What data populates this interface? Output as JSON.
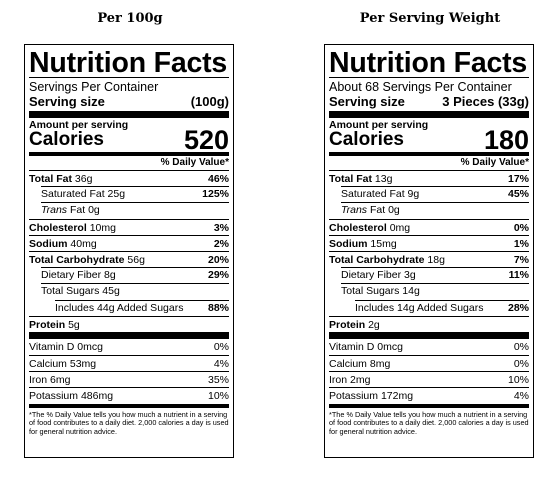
{
  "columns": [
    {
      "heading": "Per 100g",
      "title": "Nutrition Facts",
      "servings_per_container": "Servings Per Container",
      "serving_size_label": "Serving size",
      "serving_size_value": "(100g)",
      "amount_per_serving": "Amount per serving",
      "calories_label": "Calories",
      "calories_value": "520",
      "dv_header": "% Daily Value*",
      "total_fat": {
        "label": "Total Fat",
        "amount": "36g",
        "dv": "46%"
      },
      "saturated_fat": {
        "label": "Saturated Fat",
        "amount": "25g",
        "dv": "125%"
      },
      "trans_fat": {
        "label_italic": "Trans",
        "label": "Fat",
        "amount": "0g"
      },
      "cholesterol": {
        "label": "Cholesterol",
        "amount": "10mg",
        "dv": "3%"
      },
      "sodium": {
        "label": "Sodium",
        "amount": "40mg",
        "dv": "2%"
      },
      "total_carb": {
        "label": "Total Carbohydrate",
        "amount": "56g",
        "dv": "20%"
      },
      "dietary_fiber": {
        "label": "Dietary Fiber",
        "amount": "8g",
        "dv": "29%"
      },
      "total_sugars": {
        "label": "Total Sugars",
        "amount": "45g"
      },
      "added_sugars": {
        "prefix": "Includes",
        "amount": "44g",
        "label": "Added Sugars",
        "dv": "88%"
      },
      "protein": {
        "label": "Protein",
        "amount": "5g"
      },
      "vitamin_d": {
        "label": "Vitamin D",
        "amount": "0mcg",
        "dv": "0%"
      },
      "calcium": {
        "label": "Calcium",
        "amount": "53mg",
        "dv": "4%"
      },
      "iron": {
        "label": "Iron",
        "amount": "6mg",
        "dv": "35%"
      },
      "potassium": {
        "label": "Potassium",
        "amount": "486mg",
        "dv": "10%"
      },
      "footnote": "*The % Daily Value tells you how much a nutrient in a serving of food contributes to a daily diet. 2,000 calories a day is used for general nutrition advice."
    },
    {
      "heading": "Per Serving Weight",
      "title": "Nutrition Facts",
      "servings_per_container": "About 68 Servings Per Container",
      "serving_size_label": "Serving size",
      "serving_size_value": "3 Pieces (33g)",
      "amount_per_serving": "Amount per serving",
      "calories_label": "Calories",
      "calories_value": "180",
      "dv_header": "% Daily Value*",
      "total_fat": {
        "label": "Total Fat",
        "amount": "13g",
        "dv": "17%"
      },
      "saturated_fat": {
        "label": "Saturated Fat",
        "amount": "9g",
        "dv": "45%"
      },
      "trans_fat": {
        "label_italic": "Trans",
        "label": "Fat",
        "amount": "0g"
      },
      "cholesterol": {
        "label": "Cholesterol",
        "amount": "0mg",
        "dv": "0%"
      },
      "sodium": {
        "label": "Sodium",
        "amount": "15mg",
        "dv": "1%"
      },
      "total_carb": {
        "label": "Total Carbohydrate",
        "amount": "18g",
        "dv": "7%"
      },
      "dietary_fiber": {
        "label": "Dietary Fiber",
        "amount": "3g",
        "dv": "11%"
      },
      "total_sugars": {
        "label": "Total Sugars",
        "amount": "14g"
      },
      "added_sugars": {
        "prefix": "Includes",
        "amount": "14g",
        "label": "Added Sugars",
        "dv": "28%"
      },
      "protein": {
        "label": "Protein",
        "amount": "2g"
      },
      "vitamin_d": {
        "label": "Vitamin D",
        "amount": "0mcg",
        "dv": "0%"
      },
      "calcium": {
        "label": "Calcium",
        "amount": "8mg",
        "dv": "0%"
      },
      "iron": {
        "label": "Iron",
        "amount": "2mg",
        "dv": "10%"
      },
      "potassium": {
        "label": "Potassium",
        "amount": "172mg",
        "dv": "4%"
      },
      "footnote": "*The % Daily Value tells you how much a nutrient in a serving of food contributes to a daily diet. 2,000 calories a day is used for general nutrition advice."
    }
  ]
}
